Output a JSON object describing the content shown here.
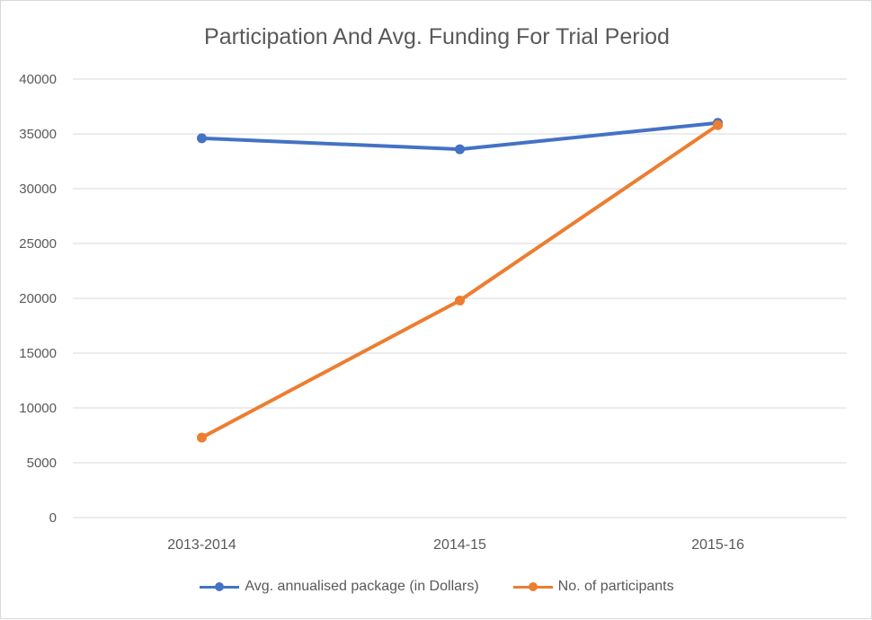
{
  "chart_data": {
    "type": "line",
    "title": "Participation And Avg. Funding For Trial Period",
    "xlabel": "",
    "ylabel": "",
    "categories": [
      "2013-2014",
      "2014-15",
      "2015-16"
    ],
    "ylim": [
      0,
      40000
    ],
    "yticks": [
      "0",
      "5000",
      "10000",
      "15000",
      "20000",
      "25000",
      "30000",
      "35000",
      "40000"
    ],
    "grid": true,
    "legend_position": "bottom",
    "series": [
      {
        "name": "Avg. annualised package (in Dollars)",
        "color": "#4472c4",
        "values": [
          34600,
          33600,
          36000
        ]
      },
      {
        "name": "No. of participants",
        "color": "#ed7d31",
        "values": [
          7300,
          19800,
          35800
        ]
      }
    ]
  }
}
